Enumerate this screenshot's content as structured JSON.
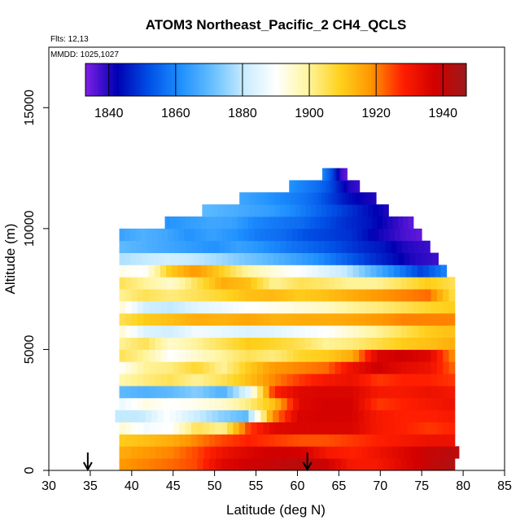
{
  "chart_data": {
    "type": "heatmap",
    "title": "ATOM3 Northeast_Pacific_2 CH4_QCLS",
    "flights_label": "Flts: 12,13",
    "date_label": "MMDD: 1025,1027",
    "xlabel": "Latitude (deg N)",
    "ylabel": "Altitude (m)",
    "xlim": [
      30,
      85
    ],
    "ylim": [
      0,
      17500
    ],
    "x_ticks": [
      "30",
      "35",
      "40",
      "45",
      "50",
      "55",
      "60",
      "65",
      "70",
      "75",
      "80",
      "85"
    ],
    "y_ticks": [
      "0",
      "5000",
      "10000",
      "15000"
    ],
    "colorbar": {
      "range": [
        1833,
        1947
      ],
      "ticks": [
        "1840",
        "1860",
        "1880",
        "1900",
        "1920",
        "1940"
      ],
      "colors": [
        "#7f1fe6",
        "#0000b3",
        "#0050e6",
        "#1e90ff",
        "#66bfff",
        "#c8ecff",
        "#ffffff",
        "#fff5a0",
        "#ffd21e",
        "#ff9600",
        "#ff1e00",
        "#d20000",
        "#9c1a1a"
      ]
    },
    "arrows_latitude": [
      34.7,
      61.2
    ],
    "layers": [
      {
        "alt": [
          0,
          500
        ],
        "lat": [
          38.5,
          79
        ],
        "values": [
          1918,
          1920,
          1922,
          1925,
          1935,
          1938,
          1940,
          1942,
          1938,
          1930,
          1930,
          1935,
          1940,
          1944
        ]
      },
      {
        "alt": [
          500,
          1000
        ],
        "lat": [
          38.5,
          79.5
        ],
        "values": [
          1915,
          1918,
          1920,
          1925,
          1932,
          1936,
          1938,
          1937,
          1930,
          1928,
          1932,
          1936,
          1940,
          1942
        ]
      },
      {
        "alt": [
          1000,
          1500
        ],
        "lat": [
          38.5,
          79
        ],
        "values": [
          1910,
          1912,
          1915,
          1920,
          1925,
          1928,
          1926,
          1924,
          1924,
          1926,
          1928,
          1930,
          1932,
          1932
        ]
      },
      {
        "alt": [
          1500,
          2000
        ],
        "lat": [
          38.5,
          79
        ],
        "values": [
          1895,
          1888,
          1890,
          1905,
          1900,
          1925,
          1935,
          1936,
          1936,
          1936,
          1930,
          1928,
          1926,
          1928
        ]
      },
      {
        "alt": [
          2000,
          2500
        ],
        "lat": [
          38,
          79
        ],
        "values": [
          1880,
          1880,
          1890,
          1882,
          1875,
          1870,
          1918,
          1936,
          1937,
          1937,
          1930,
          1928,
          1928,
          1930
        ]
      },
      {
        "alt": [
          2500,
          3000
        ],
        "lat": [
          38.5,
          79
        ],
        "values": [
          1886,
          1893,
          1890,
          1892,
          1895,
          1902,
          1912,
          1935,
          1937,
          1937,
          1926,
          1928,
          1930,
          1932
        ]
      },
      {
        "alt": [
          3000,
          3500
        ],
        "lat": [
          38.5,
          79
        ],
        "values": [
          1870,
          1868,
          1870,
          1874,
          1868,
          1885,
          1928,
          1935,
          1936,
          1936,
          1930,
          1930,
          1932,
          1930
        ]
      },
      {
        "alt": [
          3500,
          4000
        ],
        "lat": [
          38.5,
          79
        ],
        "values": [
          1898,
          1902,
          1905,
          1900,
          1905,
          1912,
          1920,
          1926,
          1930,
          1932,
          1926,
          1928,
          1928,
          1926
        ]
      },
      {
        "alt": [
          4000,
          4500
        ],
        "lat": [
          38.5,
          79
        ],
        "values": [
          1890,
          1900,
          1902,
          1908,
          1900,
          1910,
          1918,
          1920,
          1922,
          1932,
          1938,
          1934,
          1932,
          1922
        ]
      },
      {
        "alt": [
          4500,
          5000
        ],
        "lat": [
          38.5,
          79
        ],
        "values": [
          1905,
          1900,
          1890,
          1895,
          1900,
          1905,
          1902,
          1908,
          1910,
          1915,
          1936,
          1938,
          1935,
          1918
        ]
      },
      {
        "alt": [
          5000,
          5500
        ],
        "lat": [
          38.5,
          79
        ],
        "values": [
          1900,
          1905,
          1895,
          1900,
          1905,
          1910,
          1908,
          1905,
          1900,
          1902,
          1906,
          1910,
          1912,
          1915
        ]
      },
      {
        "alt": [
          5500,
          6000
        ],
        "lat": [
          38.5,
          79
        ],
        "values": [
          1895,
          1884,
          1882,
          1888,
          1886,
          1884,
          1885,
          1888,
          1890,
          1895,
          1900,
          1905,
          1910,
          1912
        ]
      },
      {
        "alt": [
          6000,
          6500
        ],
        "lat": [
          38.5,
          79
        ],
        "values": [
          1905,
          1910,
          1912,
          1915,
          1914,
          1916,
          1914,
          1915,
          1915,
          1916,
          1918,
          1920,
          1920,
          1920
        ]
      },
      {
        "alt": [
          6500,
          7000
        ],
        "lat": [
          38.5,
          79
        ],
        "values": [
          1895,
          1882,
          1880,
          1885,
          1887,
          1890,
          1892,
          1894,
          1896,
          1900,
          1902,
          1905,
          1908,
          1910
        ]
      },
      {
        "alt": [
          7000,
          7500
        ],
        "lat": [
          38.5,
          79
        ],
        "values": [
          1900,
          1905,
          1902,
          1905,
          1908,
          1912,
          1913,
          1910,
          1912,
          1915,
          1918,
          1920,
          1922,
          1905
        ]
      },
      {
        "alt": [
          7500,
          8000
        ],
        "lat": [
          38.5,
          79
        ],
        "values": [
          1905,
          1900,
          1895,
          1905,
          1915,
          1912,
          1900,
          1905,
          1903,
          1900,
          1900,
          1905,
          1910,
          1905
        ]
      },
      {
        "alt": [
          8000,
          8500
        ],
        "lat": [
          38.5,
          78
        ],
        "values": [
          1892,
          1890,
          1910,
          1918,
          1910,
          1900,
          1894,
          1890,
          1885,
          1880,
          1870,
          1860,
          1850,
          1860
        ]
      },
      {
        "alt": [
          8500,
          9000
        ],
        "lat": [
          38.5,
          77
        ],
        "values": [
          1878,
          1880,
          1882,
          1880,
          1877,
          1873,
          1870,
          1866,
          1862,
          1856,
          1850,
          1845,
          1840,
          1838
        ]
      },
      {
        "alt": [
          9000,
          9500
        ],
        "lat": [
          38.5,
          76
        ],
        "values": [
          1870,
          1868,
          1866,
          1864,
          1862,
          1865,
          1862,
          1858,
          1855,
          1852,
          1848,
          1845,
          1840,
          1838
        ]
      },
      {
        "alt": [
          9500,
          10000
        ],
        "lat": [
          38.5,
          75
        ],
        "values": [
          1865,
          1868,
          1866,
          1862,
          1865,
          1862,
          1858,
          1856,
          1852,
          1850,
          1848,
          1842,
          1838,
          1835
        ]
      },
      {
        "alt": [
          10000,
          10500
        ],
        "lat": [
          44,
          74
        ],
        "values": [
          1862,
          1864,
          1866,
          1865,
          1860,
          1858,
          1856,
          1852,
          1848,
          1845,
          1840,
          1835
        ]
      },
      {
        "alt": [
          10500,
          11000
        ],
        "lat": [
          48.5,
          71
        ],
        "values": [
          1870,
          1868,
          1866,
          1864,
          1860,
          1855,
          1850,
          1845,
          1840
        ]
      },
      {
        "alt": [
          11000,
          11500
        ],
        "lat": [
          53,
          69.5
        ],
        "values": [
          1866,
          1864,
          1862,
          1860,
          1858,
          1855,
          1850,
          1845,
          1842,
          1840
        ]
      },
      {
        "alt": [
          11500,
          12000
        ],
        "lat": [
          59,
          67.5
        ],
        "values": [
          1862,
          1860,
          1858,
          1856,
          1852,
          1846,
          1840,
          1838
        ]
      },
      {
        "alt": [
          12000,
          12500
        ],
        "lat": [
          63,
          66
        ],
        "values": [
          1860,
          1855,
          1848,
          1838,
          1835
        ]
      }
    ]
  }
}
